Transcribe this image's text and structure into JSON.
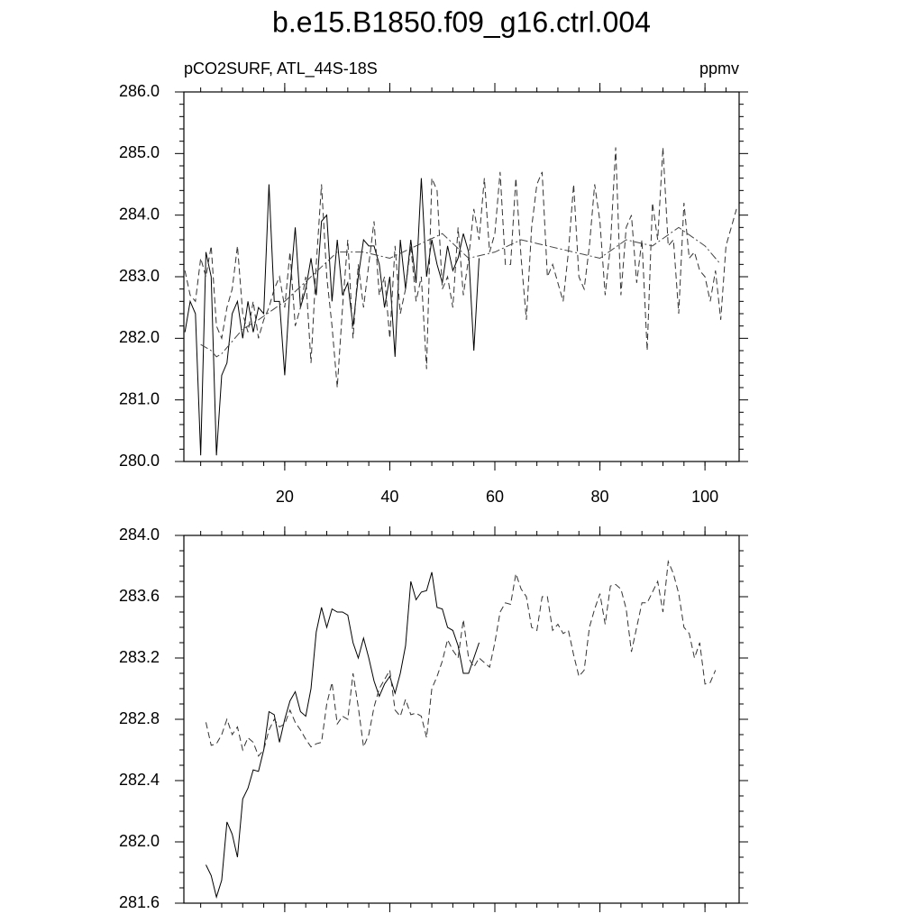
{
  "chart_data": [
    {
      "type": "line",
      "title": "b.e15.B1850.f09_g16.ctrl.004",
      "left_label": "pCO2SURF, ATL_44S-18S",
      "right_label": "ppmv",
      "x": [
        1,
        2,
        3,
        4,
        5,
        6,
        7,
        8,
        9,
        10,
        11,
        12,
        13,
        14,
        15,
        16,
        17,
        18,
        19,
        20,
        21,
        22,
        23,
        24,
        25,
        26,
        27,
        28,
        29,
        30,
        31,
        32,
        33,
        34,
        35,
        36,
        37,
        38,
        39,
        40,
        41,
        42,
        43,
        44,
        45,
        46,
        47,
        48,
        49,
        50,
        51,
        52,
        53,
        54,
        55,
        56,
        57,
        58,
        59,
        60,
        61,
        62,
        63,
        64,
        65,
        66,
        67,
        68,
        69,
        70,
        71,
        72,
        73,
        74,
        75,
        76,
        77,
        78,
        79,
        80,
        81,
        82,
        83,
        84,
        85,
        86,
        87,
        88,
        89,
        90,
        91,
        92,
        93,
        94,
        95,
        96,
        97,
        98,
        99,
        100,
        101,
        102,
        103,
        104,
        105,
        106
      ],
      "xlim": [
        0.8,
        106.5
      ],
      "xticks": [
        20,
        40,
        60,
        80,
        100
      ],
      "ylim": [
        280,
        286
      ],
      "yticks": [
        {
          "value": 280,
          "label": "280.0"
        },
        {
          "value": 281,
          "label": "281.0"
        },
        {
          "value": 282,
          "label": "282.0"
        },
        {
          "value": 283,
          "label": "283.0"
        },
        {
          "value": 284,
          "label": "284.0"
        },
        {
          "value": 285,
          "label": "285.0"
        },
        {
          "value": 286,
          "label": "286.0"
        }
      ],
      "series": [
        {
          "color": "#000000",
          "dash": "solid",
          "values": [
            282.1,
            282.6,
            282.4,
            280.1,
            283.4,
            283.0,
            280.1,
            281.4,
            281.6,
            282.4,
            282.6,
            282.0,
            282.6,
            282.1,
            282.5,
            282.4,
            284.5,
            282.6,
            282.6,
            281.4,
            282.8,
            283.8,
            282.5,
            282.8,
            283.3,
            282.7,
            283.9,
            284.0,
            282.6,
            283.6,
            282.7,
            282.9,
            282.2,
            283.0,
            283.6,
            283.5,
            283.5,
            283.2,
            282.5,
            283.0,
            281.7,
            283.6,
            282.8,
            283.6,
            282.9,
            284.6,
            283.0,
            283.6,
            283.2,
            282.9,
            283.5,
            283.1,
            283.3,
            283.7,
            283.4,
            281.8,
            283.3,
            null,
            null,
            null,
            null,
            null,
            null,
            null,
            null,
            null,
            null,
            null,
            null,
            null,
            null,
            null,
            null,
            null,
            null,
            null,
            null,
            null,
            null,
            null,
            null,
            null,
            null,
            null,
            null,
            null,
            null,
            null,
            null,
            null,
            null,
            null,
            null,
            null,
            null,
            null,
            null,
            null,
            null,
            null,
            null,
            null,
            null,
            null,
            null,
            null
          ]
        },
        {
          "color": "#333333",
          "dash": "dashed",
          "values": [
            283.1,
            282.7,
            282.6,
            283.3,
            283.0,
            283.5,
            282.2,
            282.0,
            282.5,
            282.8,
            283.5,
            282.4,
            282.1,
            282.6,
            282.0,
            282.3,
            282.5,
            282.8,
            283.0,
            282.5,
            283.4,
            282.2,
            282.5,
            283.0,
            281.6,
            283.2,
            284.5,
            283.0,
            282.2,
            281.2,
            282.5,
            283.6,
            282.0,
            283.2,
            282.5,
            283.2,
            283.9,
            282.7,
            283.0,
            282.0,
            283.5,
            282.4,
            282.8,
            283.5,
            282.6,
            283.0,
            281.5,
            284.6,
            284.4,
            282.8,
            283.0,
            282.5,
            283.8,
            282.7,
            283.3,
            284.1,
            283.6,
            284.6,
            283.4,
            283.7,
            284.7,
            283.2,
            283.2,
            284.6,
            283.3,
            282.3,
            283.8,
            284.5,
            284.7,
            283.0,
            283.2,
            282.9,
            282.6,
            283.4,
            284.5,
            283.0,
            282.8,
            283.5,
            284.5,
            283.9,
            282.7,
            283.5,
            285.1,
            282.7,
            283.8,
            284.0,
            282.9,
            283.6,
            281.8,
            284.2,
            283.6,
            285.1,
            283.5,
            283.6,
            282.4,
            284.2,
            283.3,
            283.4,
            283.1,
            283.0,
            282.6,
            283.1,
            282.3,
            283.5,
            283.8,
            284.1
          ]
        },
        {
          "color": "#444444",
          "dash": "dashdot",
          "values": [
            null,
            null,
            null,
            281.9,
            281.85,
            281.8,
            281.7,
            281.75,
            281.85,
            281.95,
            282.05,
            282.15,
            282.2,
            282.25,
            282.3,
            282.36,
            282.42,
            282.48,
            282.54,
            282.6,
            282.68,
            282.76,
            282.84,
            282.92,
            283.0,
            283.08,
            283.16,
            283.24,
            283.32,
            283.4,
            283.4,
            283.4,
            283.4,
            283.4,
            283.4,
            283.38,
            283.36,
            283.34,
            283.32,
            283.3,
            283.34,
            283.38,
            283.42,
            283.46,
            283.5,
            283.54,
            283.58,
            283.62,
            283.66,
            283.7,
            283.62,
            283.54,
            283.46,
            283.38,
            283.3,
            283.32,
            283.34,
            283.36,
            283.38,
            283.4,
            283.44,
            283.48,
            283.52,
            283.56,
            283.6,
            283.58,
            283.56,
            283.54,
            283.52,
            283.5,
            283.48,
            283.46,
            283.44,
            283.42,
            283.4,
            283.38,
            283.36,
            283.34,
            283.32,
            283.3,
            283.36,
            283.42,
            283.48,
            283.54,
            283.6,
            283.58,
            283.56,
            283.54,
            283.52,
            283.5,
            283.56,
            283.62,
            283.68,
            283.74,
            283.8,
            283.74,
            283.68,
            283.62,
            283.56,
            283.5,
            283.4,
            283.3,
            283.2,
            null,
            null,
            null
          ]
        }
      ]
    },
    {
      "type": "line",
      "x": [
        1,
        2,
        3,
        4,
        5,
        6,
        7,
        8,
        9,
        10,
        11,
        12,
        13,
        14,
        15,
        16,
        17,
        18,
        19,
        20,
        21,
        22,
        23,
        24,
        25,
        26,
        27,
        28,
        29,
        30,
        31,
        32,
        33,
        34,
        35,
        36,
        37,
        38,
        39,
        40,
        41,
        42,
        43,
        44,
        45,
        46,
        47,
        48,
        49,
        50,
        51,
        52,
        53,
        54,
        55,
        56,
        57,
        58,
        59,
        60,
        61,
        62,
        63,
        64,
        65,
        66,
        67,
        68,
        69,
        70,
        71,
        72,
        73,
        74,
        75,
        76,
        77,
        78,
        79,
        80,
        81,
        82,
        83,
        84,
        85,
        86,
        87,
        88,
        89,
        90,
        91,
        92,
        93,
        94,
        95,
        96,
        97,
        98,
        99,
        100,
        101,
        102,
        103,
        104,
        105,
        106
      ],
      "xlim": [
        0.8,
        106.5
      ],
      "xticks": [
        20,
        40,
        60,
        80,
        100
      ],
      "ylim": [
        281.6,
        284.0
      ],
      "yticks": [
        {
          "value": 281.6,
          "label": "281.6"
        },
        {
          "value": 282.0,
          "label": "282.0"
        },
        {
          "value": 282.4,
          "label": "282.4"
        },
        {
          "value": 282.8,
          "label": "282.8"
        },
        {
          "value": 283.2,
          "label": "283.2"
        },
        {
          "value": 283.6,
          "label": "283.6"
        },
        {
          "value": 284.0,
          "label": "284.0"
        }
      ],
      "series": [
        {
          "color": "#000000",
          "dash": "solid",
          "values": [
            null,
            null,
            null,
            null,
            281.85,
            281.78,
            281.64,
            281.75,
            282.13,
            282.05,
            281.9,
            282.28,
            282.35,
            282.47,
            282.46,
            282.6,
            282.85,
            282.83,
            282.65,
            282.8,
            282.92,
            282.98,
            282.85,
            282.82,
            283.0,
            283.37,
            283.53,
            283.4,
            283.52,
            283.5,
            283.5,
            283.48,
            283.3,
            283.2,
            283.33,
            283.2,
            283.05,
            282.95,
            283.03,
            283.08,
            282.97,
            283.1,
            283.28,
            283.7,
            283.58,
            283.63,
            283.64,
            283.76,
            283.53,
            283.52,
            283.4,
            283.38,
            283.28,
            283.1,
            283.1,
            283.2,
            283.3,
            null,
            null,
            null,
            null,
            null,
            null,
            null,
            null,
            null,
            null,
            null,
            null,
            null,
            null,
            null,
            null,
            null,
            null,
            null,
            null,
            null,
            null,
            null,
            null,
            null,
            null,
            null,
            null,
            null,
            null,
            null,
            null,
            null,
            null,
            null,
            null,
            null,
            null,
            null,
            null,
            null,
            null,
            null,
            null,
            null,
            null,
            null,
            null,
            null
          ]
        },
        {
          "color": "#333333",
          "dash": "dashed",
          "values": [
            null,
            null,
            null,
            null,
            282.78,
            282.63,
            282.64,
            282.7,
            282.8,
            282.7,
            282.75,
            282.6,
            282.68,
            282.65,
            282.56,
            282.6,
            282.73,
            282.8,
            282.75,
            282.77,
            282.86,
            282.78,
            282.73,
            282.67,
            282.62,
            282.64,
            282.65,
            282.9,
            283.04,
            282.77,
            282.82,
            282.8,
            283.1,
            282.88,
            282.62,
            282.7,
            282.88,
            283.0,
            283.06,
            283.12,
            282.86,
            282.82,
            282.93,
            282.83,
            282.84,
            282.82,
            282.68,
            283.0,
            283.08,
            283.18,
            283.32,
            283.25,
            283.2,
            283.45,
            283.2,
            283.14,
            283.2,
            283.17,
            283.14,
            283.3,
            283.5,
            283.56,
            283.55,
            283.75,
            283.65,
            283.6,
            283.4,
            283.38,
            283.6,
            283.6,
            283.38,
            283.42,
            283.36,
            283.38,
            283.22,
            283.08,
            283.12,
            283.4,
            283.52,
            283.62,
            283.42,
            283.67,
            283.68,
            283.65,
            283.52,
            283.24,
            283.4,
            283.56,
            283.56,
            283.63,
            283.7,
            283.5,
            283.83,
            283.75,
            283.62,
            283.4,
            283.36,
            283.2,
            283.3,
            283.03,
            283.04,
            283.12,
            null,
            null,
            null,
            null
          ]
        }
      ]
    }
  ]
}
